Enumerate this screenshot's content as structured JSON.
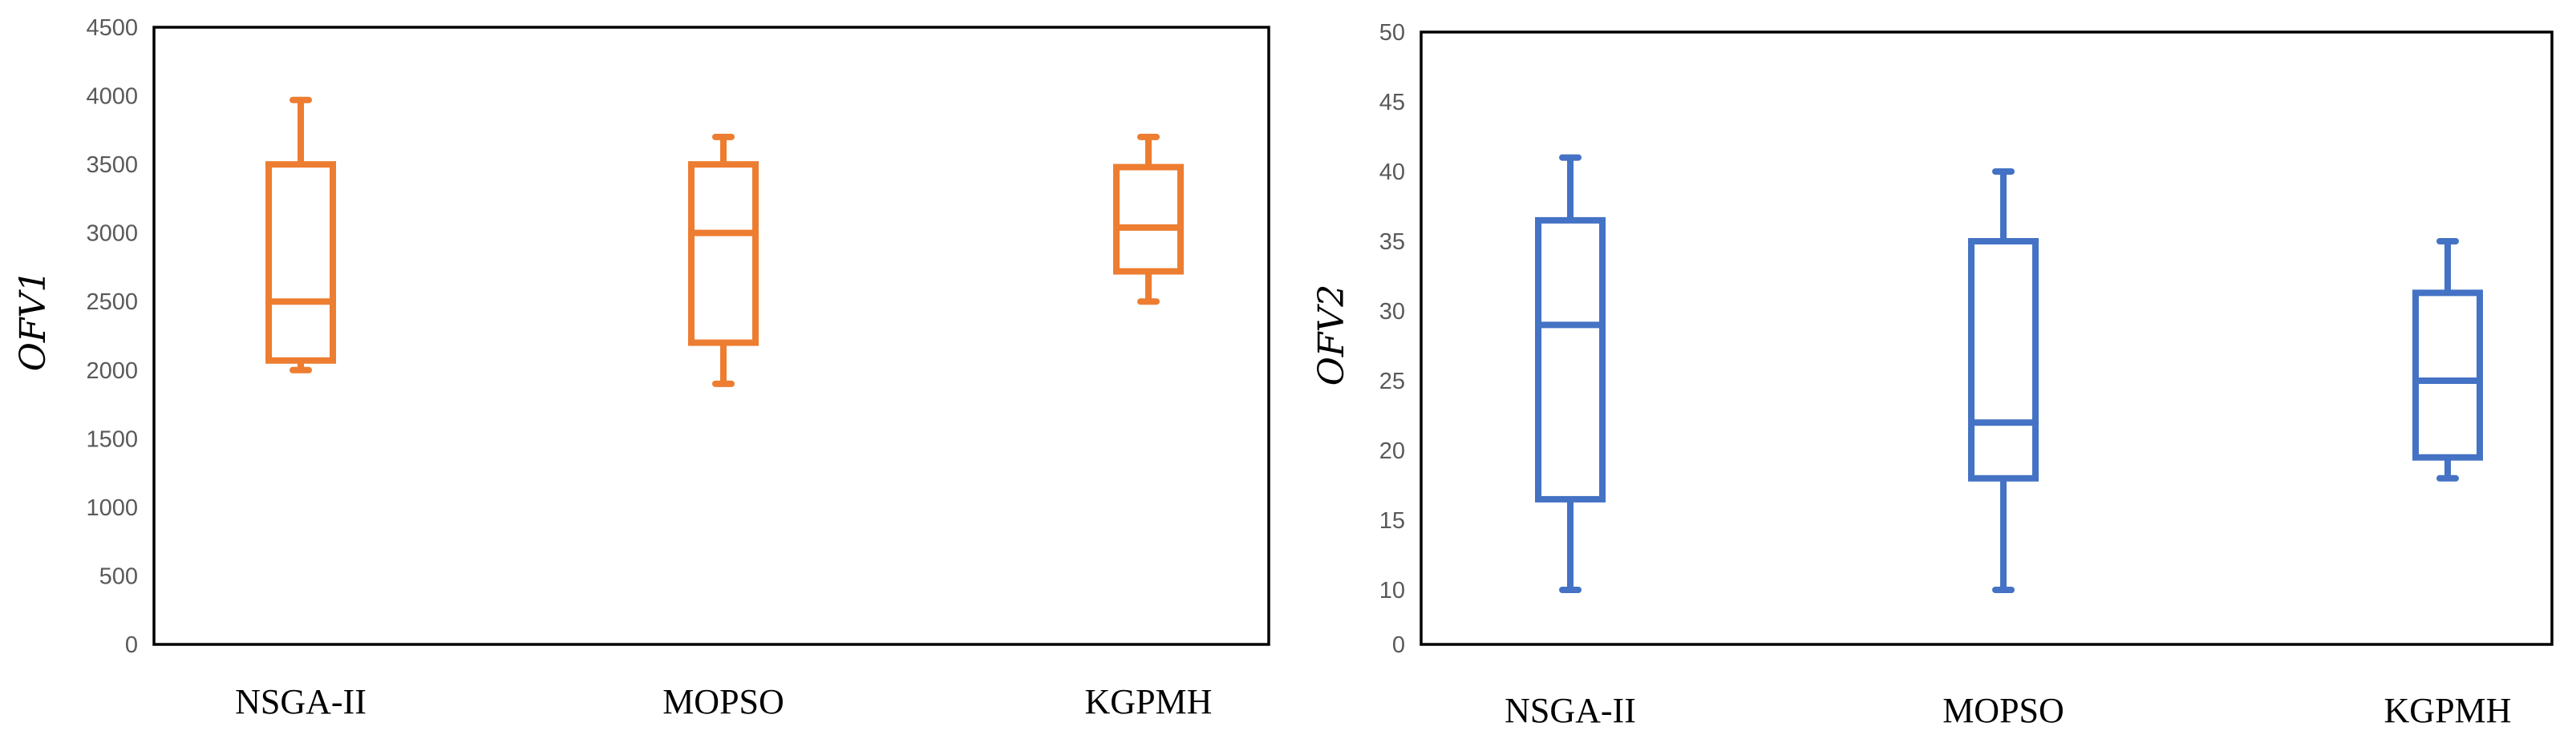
{
  "chart_data": [
    {
      "type": "boxplot",
      "ylabel": "OFV1",
      "xlabel": "",
      "ylim": [
        0,
        4500
      ],
      "ytick_step": 500,
      "grid": true,
      "color": "#ED7D31",
      "categories": [
        "NSGA-II",
        "MOPSO",
        "KGPMH"
      ],
      "boxes": [
        {
          "min": 2000,
          "q1": 2070,
          "median": 2500,
          "q3": 3500,
          "max": 3970
        },
        {
          "min": 1900,
          "q1": 2200,
          "median": 3000,
          "q3": 3500,
          "max": 3700
        },
        {
          "min": 2500,
          "q1": 2720,
          "median": 3040,
          "q3": 3480,
          "max": 3700
        }
      ]
    },
    {
      "type": "boxplot",
      "ylabel": "OFV2",
      "xlabel": "",
      "ylim": [
        0,
        50
      ],
      "ytick_step": 5,
      "grid": true,
      "color": "#4472C4",
      "categories": [
        "NSGA-II",
        "MOPSO",
        "KGPMH"
      ],
      "boxes": [
        {
          "min": 10,
          "q1": 16.5,
          "median": 29,
          "q3": 36.5,
          "max": 41
        },
        {
          "min": 10,
          "q1": 18,
          "median": 22,
          "q3": 35,
          "max": 40
        },
        {
          "min": 18,
          "q1": 19.5,
          "median": 25,
          "q3": 31.3,
          "max": 35
        }
      ]
    }
  ]
}
